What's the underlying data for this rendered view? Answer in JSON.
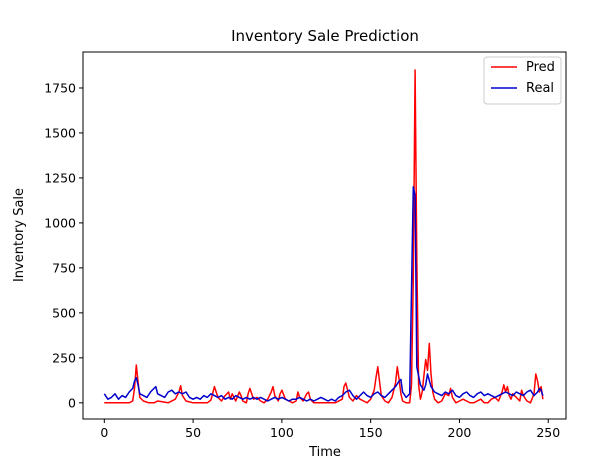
{
  "chart_data": {
    "type": "line",
    "title": "Inventory Sale Prediction",
    "xlabel": "Time",
    "ylabel": "Inventory Sale",
    "xlim": [
      -12,
      260
    ],
    "ylim": [
      -90,
      1950
    ],
    "xticks": [
      0,
      50,
      100,
      150,
      200,
      250
    ],
    "yticks": [
      0,
      250,
      500,
      750,
      1000,
      1250,
      1500,
      1750
    ],
    "legend_position": "top-right",
    "series": [
      {
        "name": "Pred",
        "color": "#ff0000",
        "x": [
          0,
          5,
          10,
          14,
          16,
          17,
          18,
          19,
          20,
          22,
          25,
          28,
          30,
          33,
          36,
          40,
          42,
          43,
          44,
          46,
          50,
          55,
          58,
          60,
          61,
          62,
          64,
          66,
          68,
          70,
          71,
          72,
          74,
          76,
          77,
          78,
          80,
          81,
          82,
          84,
          86,
          88,
          90,
          92,
          94,
          95,
          96,
          98,
          99,
          100,
          102,
          104,
          106,
          108,
          109,
          110,
          112,
          114,
          115,
          116,
          118,
          120,
          125,
          130,
          134,
          135,
          136,
          137,
          138,
          140,
          142,
          144,
          146,
          148,
          150,
          152,
          153,
          154,
          155,
          156,
          158,
          160,
          162,
          164,
          165,
          166,
          167,
          168,
          170,
          172,
          173,
          174,
          175,
          176,
          177,
          178,
          179,
          180,
          181,
          182,
          183,
          184,
          185,
          186,
          188,
          190,
          192,
          194,
          195,
          196,
          198,
          200,
          202,
          204,
          206,
          208,
          210,
          212,
          214,
          216,
          218,
          220,
          222,
          224,
          225,
          226,
          227,
          228,
          229,
          230,
          232,
          234,
          235,
          236,
          238,
          240,
          242,
          243,
          244,
          245,
          246,
          247
        ],
        "y": [
          0,
          0,
          0,
          0,
          10,
          80,
          210,
          120,
          30,
          10,
          0,
          0,
          10,
          5,
          0,
          20,
          60,
          95,
          40,
          10,
          0,
          0,
          0,
          15,
          50,
          90,
          30,
          10,
          40,
          60,
          20,
          50,
          10,
          60,
          40,
          10,
          0,
          50,
          80,
          20,
          30,
          10,
          0,
          20,
          60,
          90,
          40,
          10,
          50,
          70,
          20,
          10,
          0,
          10,
          60,
          30,
          10,
          50,
          60,
          20,
          0,
          0,
          0,
          0,
          20,
          90,
          110,
          70,
          30,
          10,
          40,
          20,
          10,
          0,
          20,
          70,
          140,
          200,
          120,
          40,
          10,
          0,
          30,
          110,
          200,
          130,
          50,
          10,
          0,
          0,
          100,
          700,
          1850,
          800,
          100,
          20,
          60,
          150,
          240,
          180,
          330,
          160,
          60,
          20,
          0,
          10,
          50,
          40,
          80,
          30,
          0,
          10,
          20,
          10,
          0,
          0,
          10,
          20,
          0,
          0,
          20,
          30,
          10,
          60,
          100,
          60,
          90,
          40,
          20,
          50,
          30,
          10,
          70,
          40,
          10,
          0,
          50,
          160,
          120,
          60,
          90,
          20
        ]
      },
      {
        "name": "Real",
        "color": "#0000cd",
        "x": [
          0,
          2,
          4,
          6,
          8,
          10,
          12,
          14,
          16,
          17,
          18,
          19,
          20,
          22,
          24,
          26,
          28,
          29,
          30,
          32,
          34,
          36,
          38,
          40,
          42,
          44,
          46,
          48,
          50,
          52,
          54,
          56,
          58,
          60,
          62,
          64,
          66,
          68,
          70,
          72,
          74,
          76,
          78,
          80,
          82,
          84,
          86,
          88,
          90,
          92,
          94,
          96,
          98,
          100,
          102,
          104,
          106,
          108,
          110,
          112,
          114,
          116,
          118,
          120,
          122,
          124,
          126,
          128,
          130,
          132,
          134,
          136,
          138,
          140,
          142,
          144,
          146,
          148,
          150,
          152,
          154,
          156,
          158,
          160,
          162,
          164,
          166,
          167,
          168,
          170,
          172,
          174,
          175,
          176,
          178,
          180,
          181,
          182,
          184,
          186,
          188,
          190,
          192,
          194,
          196,
          198,
          200,
          202,
          204,
          206,
          208,
          210,
          212,
          214,
          216,
          218,
          220,
          222,
          224,
          226,
          228,
          230,
          232,
          234,
          236,
          238,
          240,
          242,
          244,
          245,
          246,
          247
        ],
        "y": [
          50,
          20,
          30,
          50,
          20,
          40,
          30,
          60,
          80,
          120,
          140,
          100,
          50,
          40,
          30,
          60,
          80,
          90,
          50,
          40,
          30,
          60,
          70,
          50,
          60,
          50,
          60,
          30,
          20,
          30,
          20,
          40,
          30,
          50,
          40,
          30,
          40,
          20,
          30,
          20,
          40,
          30,
          20,
          30,
          20,
          30,
          20,
          30,
          20,
          10,
          20,
          30,
          20,
          30,
          20,
          10,
          20,
          20,
          30,
          20,
          10,
          20,
          10,
          20,
          30,
          20,
          10,
          20,
          10,
          30,
          40,
          60,
          70,
          40,
          20,
          40,
          60,
          40,
          30,
          50,
          60,
          40,
          30,
          50,
          70,
          90,
          120,
          130,
          60,
          30,
          50,
          1200,
          1150,
          200,
          100,
          70,
          100,
          160,
          90,
          60,
          50,
          40,
          60,
          50,
          70,
          40,
          30,
          50,
          60,
          40,
          30,
          50,
          60,
          40,
          50,
          40,
          30,
          40,
          50,
          60,
          50,
          40,
          60,
          50,
          40,
          60,
          70,
          40,
          60,
          80,
          70,
          40
        ]
      }
    ]
  }
}
